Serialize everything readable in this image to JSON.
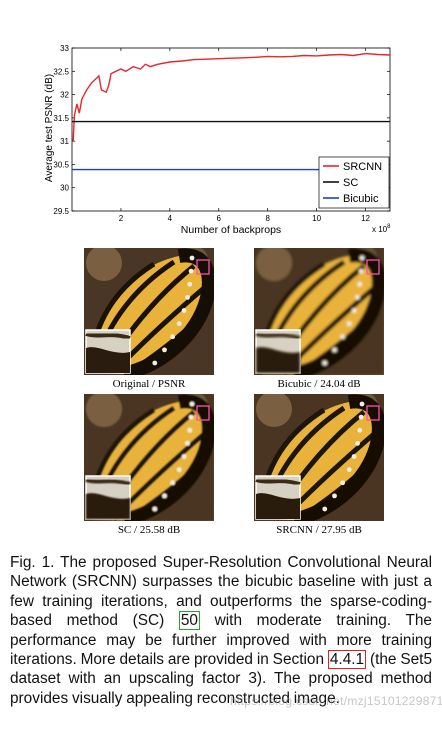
{
  "chart_data": {
    "type": "line",
    "xlabel": "Number of backprops",
    "ylabel": "Average test PSNR (dB)",
    "x_multiplier_label": "x 10",
    "x_multiplier_exp": "8",
    "xlim": [
      0,
      13
    ],
    "ylim": [
      29.5,
      33
    ],
    "x_ticks": [
      2,
      4,
      6,
      8,
      10,
      12
    ],
    "y_ticks": [
      29.5,
      30,
      30.5,
      31,
      31.5,
      32,
      32.5,
      33
    ],
    "legend_position": "bottom-right",
    "series": [
      {
        "name": "SRCNN",
        "color": "#e8262b",
        "x": [
          0.05,
          0.1,
          0.2,
          0.3,
          0.4,
          0.5,
          0.6,
          0.8,
          1.0,
          1.1,
          1.2,
          1.4,
          1.5,
          1.6,
          1.8,
          2.0,
          2.2,
          2.5,
          2.8,
          3.0,
          3.2,
          3.5,
          4.0,
          4.5,
          5.0,
          5.5,
          6.0,
          6.5,
          7.0,
          7.5,
          8.0,
          8.5,
          9.0,
          9.5,
          10.0,
          10.5,
          11.0,
          11.5,
          12.0,
          12.5,
          13.0
        ],
        "y": [
          31.0,
          31.55,
          31.8,
          31.6,
          31.9,
          32.0,
          32.1,
          32.25,
          32.35,
          32.4,
          32.1,
          32.05,
          32.2,
          32.45,
          32.5,
          32.55,
          32.5,
          32.6,
          32.55,
          32.65,
          32.6,
          32.65,
          32.7,
          32.72,
          32.75,
          32.76,
          32.77,
          32.78,
          32.79,
          32.8,
          32.82,
          32.81,
          32.82,
          32.84,
          32.83,
          32.85,
          32.86,
          32.84,
          32.88,
          32.86,
          32.85
        ]
      },
      {
        "name": "SC",
        "color": "#111111",
        "x": [
          0,
          13
        ],
        "y": [
          31.42,
          31.42
        ]
      },
      {
        "name": "Bicubic",
        "color": "#1a3fd6",
        "x": [
          0,
          13
        ],
        "y": [
          30.39,
          30.39
        ]
      }
    ]
  },
  "panels": [
    {
      "label": "Original / PSNR"
    },
    {
      "label": "Bicubic / 24.04 dB"
    },
    {
      "label": "SC / 25.58 dB"
    },
    {
      "label": "SRCNN / 27.95 dB"
    }
  ],
  "caption": {
    "before_ref": "Fig. 1.   The proposed Super-Resolution Convolutional Neural Network (SRCNN) surpasses the bicubic baseline with just a few training iterations, and outperforms the sparse-coding-based method (SC) ",
    "ref": "50",
    "between": " with moderate training. The performance may be further improved with more training iterations. More details are provided in Section ",
    "section": "4.4.1",
    "after": " (the Set5 dataset with an upscaling factor 3). The proposed method provides visually appealing reconstructed image."
  },
  "watermark": "https://blog.csdn.net/mzj15101229871"
}
